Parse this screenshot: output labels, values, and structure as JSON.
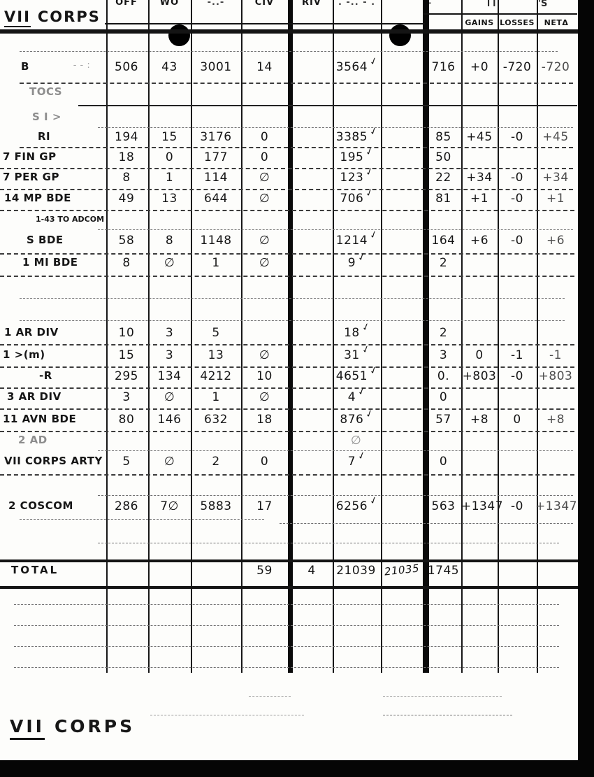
{
  "titles": {
    "top": {
      "roman": "VII",
      "word": "CORPS"
    },
    "footer": {
      "roman": "VII",
      "word": "CORPS"
    }
  },
  "headers": {
    "off": "OFF",
    "wo": "WO",
    "enl": "-..-",
    "civ": "CIV",
    "riv": "RIV",
    "tot": ". -.. - .",
    "gains": "GAINS",
    "losses": "LOSSES",
    "net": "NETΔ"
  },
  "fragments": {
    "auth_mark": "⌐",
    "pre_gains": "l l",
    "s_mark": "'S"
  },
  "rows": [
    {
      "id": "hhb",
      "label": "B",
      "label2": "- - :",
      "off": "506",
      "wo": "43",
      "enl": "3001",
      "civ": "14",
      "tot": "3564",
      "check": true,
      "auth": "716",
      "gains": "+0",
      "losses": "-720",
      "net": "-720"
    },
    {
      "id": "tocs",
      "label": "TOCS",
      "faint": true
    },
    {
      "id": "sig",
      "label": "S I        >",
      "faint": true
    },
    {
      "id": "ri",
      "label": "RI",
      "off": "194",
      "wo": "15",
      "enl": "3176",
      "civ": "0",
      "tot": "3385",
      "check": true,
      "auth": "85",
      "gains": "+45",
      "losses": "-0",
      "net": "+45"
    },
    {
      "id": "fin",
      "label": "7 FIN GP",
      "off": "18",
      "wo": "0",
      "enl": "177",
      "civ": "0",
      "tot": "195",
      "check": true,
      "auth": "50"
    },
    {
      "id": "per",
      "label": "7 PER GP",
      "off": "8",
      "wo": "1",
      "enl": "114",
      "civ": "∅",
      "tot": "123",
      "check": true,
      "auth": "22",
      "gains": "+34",
      "losses": "-0",
      "net": "+34"
    },
    {
      "id": "mp",
      "label": "14 MP BDE",
      "off": "49",
      "wo": "13",
      "enl": "644",
      "civ": "∅",
      "tot": "706",
      "check": true,
      "auth": "81",
      "gains": "+1",
      "losses": "-0",
      "net": "+1"
    },
    {
      "id": "adcom",
      "label": "1-43 TO ADCOM",
      "note": true
    },
    {
      "id": "sbde",
      "label": "S   BDE",
      "off": "58",
      "wo": "8",
      "enl": "1148",
      "civ": "∅",
      "tot": "1214",
      "check": true,
      "auth": "164",
      "gains": "+6",
      "losses": "-0",
      "net": "+6"
    },
    {
      "id": "mibde",
      "label": "1 MI BDE",
      "off": "8",
      "wo": "∅",
      "enl": "1",
      "civ": "∅",
      "tot": "9",
      "check": true,
      "auth": "2"
    },
    {
      "id": "blank1"
    },
    {
      "id": "blank2"
    },
    {
      "id": "ardiv1",
      "label": "1 AR DIV",
      "off": "10",
      "wo": "3",
      "enl": "5",
      "tot": "18",
      "check": true,
      "auth": "2"
    },
    {
      "id": "idm",
      "label": "1   >(m)",
      "off": "15",
      "wo": "3",
      "enl": "13",
      "civ": "∅",
      "tot": "31",
      "check": true,
      "auth": "3",
      "gains": "0",
      "losses": "-1",
      "net": "-1"
    },
    {
      "id": "acr",
      "label": "-R",
      "off": "295",
      "wo": "134",
      "enl": "4212",
      "civ": "10",
      "tot": "4651",
      "check": true,
      "auth": "0.",
      "gains": "+803",
      "losses": "-0",
      "net": "+803"
    },
    {
      "id": "ardiv3",
      "label": "3 AR DIV",
      "off": "3",
      "wo": "∅",
      "enl": "1",
      "civ": "∅",
      "tot": "4",
      "check": true,
      "auth": "0"
    },
    {
      "id": "avn",
      "label": "11 AVN BDE",
      "off": "80",
      "wo": "146",
      "enl": "632",
      "civ": "18",
      "tot": "876",
      "check": true,
      "auth": "57",
      "gains": "+8",
      "losses": "0",
      "net": "+8"
    },
    {
      "id": "ad2",
      "label": "2 AD",
      "faint": true,
      "tot": "∅"
    },
    {
      "id": "arty",
      "label": "VII CORPS ARTY",
      "off": "5",
      "wo": "∅",
      "enl": "2",
      "civ": "0",
      "tot": "7",
      "check": true,
      "auth": "0"
    },
    {
      "id": "blank3"
    },
    {
      "id": "coscom",
      "label": "2 COSCOM",
      "off": "286",
      "wo": "7∅",
      "enl": "5883",
      "civ": "17",
      "tot": "6256",
      "check": true,
      "auth": "563",
      "gains": "+1347",
      "losses": "-0",
      "net": "+1347"
    },
    {
      "id": "blank4"
    },
    {
      "id": "total",
      "label": "TOTAL",
      "civ": "59",
      "riv": "4",
      "tot": "21039",
      "tot2": "21035",
      "auth": "1745",
      "total": true
    }
  ]
}
